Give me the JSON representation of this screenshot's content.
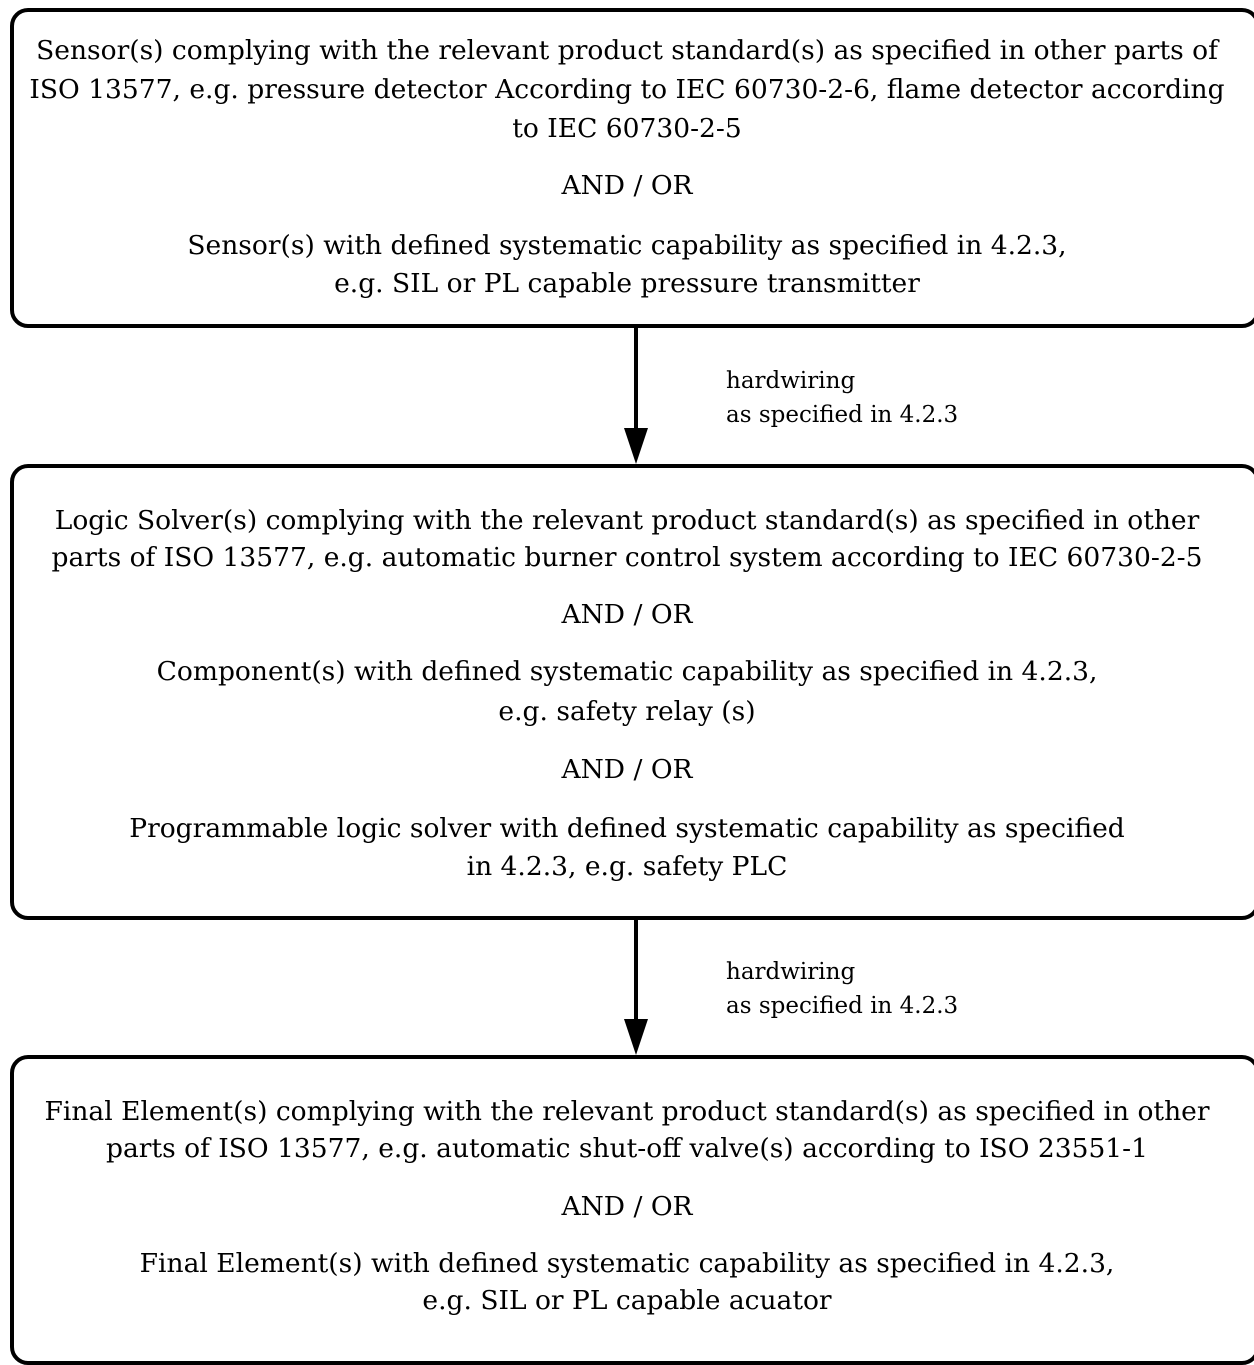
{
  "blocks": {
    "sensor": {
      "lines": [
        "Sensor(s) complying with the relevant product standard(s) as specified in other parts of",
        "ISO 13577, e.g. pressure detector According to IEC 60730-2-6, flame detector according",
        "to IEC 60730-2-5",
        "AND / OR",
        "Sensor(s) with defined systematic capability as specified in 4.2.3,",
        "e.g. SIL or PL capable pressure transmitter"
      ]
    },
    "logic": {
      "lines": [
        "Logic Solver(s) complying with the relevant product standard(s) as specified in other",
        "parts of ISO 13577, e.g. automatic burner control system according to IEC 60730-2-5",
        "AND / OR",
        "Component(s) with defined systematic capability as specified in 4.2.3,",
        "e.g. safety relay (s)",
        "AND / OR",
        "Programmable logic solver with defined systematic capability as specified",
        "in 4.2.3, e.g. safety PLC"
      ]
    },
    "final": {
      "lines": [
        "Final Element(s) complying with the relevant product standard(s) as specified in other",
        "parts of ISO 13577, e.g. automatic shut-off valve(s) according to ISO 23551-1",
        "AND / OR",
        "Final Element(s) with defined systematic capability as specified in 4.2.3,",
        "e.g. SIL or PL capable acuator"
      ]
    }
  },
  "connectors": [
    {
      "label_line1": "hardwiring",
      "label_line2": "as specified in 4.2.3"
    },
    {
      "label_line1": "hardwiring",
      "label_line2": "as specified in 4.2.3"
    }
  ]
}
